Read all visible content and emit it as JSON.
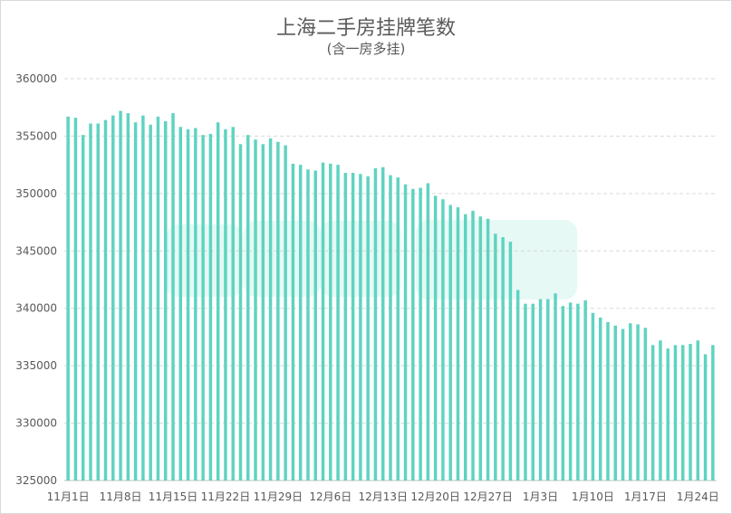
{
  "colors": {
    "bar": "#5fd3c1",
    "grid": "#d9d9d9",
    "text": "#595959",
    "watermark": "#d6f5ef"
  },
  "chart_data": {
    "type": "bar",
    "title": "上海二手房挂牌笔数",
    "subtitle": "(含一房多挂)",
    "ylim": [
      325000,
      360000
    ],
    "yticks": [
      325000,
      330000,
      335000,
      340000,
      345000,
      350000,
      355000,
      360000
    ],
    "grid": true,
    "legend": "none",
    "x_tick_labels": [
      "11月1日",
      "11月8日",
      "11月15日",
      "11月22日",
      "11月29日",
      "12月6日",
      "12月13日",
      "12月20日",
      "12月27日",
      "1月3日",
      "1月10日",
      "1月17日",
      "1月24日"
    ],
    "x_tick_every": 7,
    "values": [
      356700,
      356600,
      355100,
      356100,
      356100,
      356400,
      356800,
      357200,
      357000,
      356200,
      356800,
      356000,
      356700,
      356300,
      357000,
      355800,
      355600,
      355700,
      355100,
      355200,
      356200,
      355600,
      355800,
      354300,
      355100,
      354700,
      354300,
      354800,
      354500,
      354200,
      352600,
      352500,
      352100,
      352000,
      352700,
      352600,
      352500,
      351800,
      351800,
      351700,
      351500,
      352200,
      352300,
      351600,
      351400,
      350800,
      350400,
      350500,
      350900,
      349800,
      349500,
      349000,
      348800,
      348200,
      348500,
      348000,
      347800,
      346500,
      346200,
      345800,
      341600,
      340400,
      340400,
      340800,
      340800,
      341300,
      340200,
      340500,
      340400,
      340700,
      339600,
      339200,
      338800,
      338500,
      338200,
      338700,
      338600,
      338300,
      336800,
      337200,
      336500,
      336800,
      336800,
      336900,
      337200,
      336000,
      336800
    ]
  }
}
